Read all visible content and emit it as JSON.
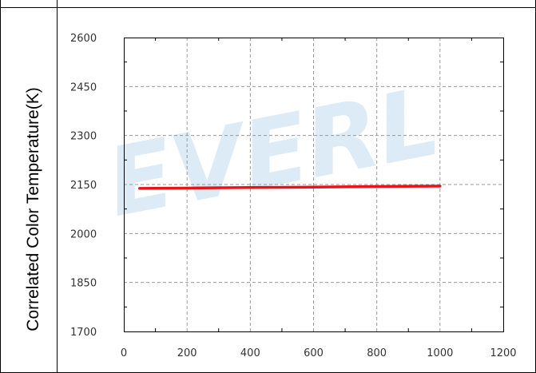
{
  "chart_data": {
    "type": "line",
    "title": "",
    "xlabel": "",
    "ylabel": "Correlated Color Temperature(K)",
    "xlim": [
      0,
      1200
    ],
    "ylim": [
      1700,
      2600
    ],
    "xticks": [
      0,
      200,
      400,
      600,
      800,
      1000,
      1200
    ],
    "yticks": [
      1700,
      1850,
      2000,
      2150,
      2300,
      2450,
      2600
    ],
    "x_tick_labels": [
      "0",
      "200",
      "400",
      "600",
      "800",
      "1000",
      "1200"
    ],
    "y_tick_labels": [
      "1700",
      "1850",
      "2000",
      "2150",
      "2300",
      "2450",
      "2600"
    ],
    "grid": true,
    "legend": "none",
    "series": [
      {
        "color": "#e8141b",
        "x": [
          50,
          200,
          400,
          600,
          800,
          1000
        ],
        "y": [
          2138,
          2139,
          2141,
          2142,
          2144,
          2145
        ]
      }
    ]
  },
  "watermark": "EVERL",
  "colors": {
    "line": "#e8141b",
    "grid": "#9a9a9a",
    "axis": "#000000",
    "watermark": "#cfe3f3"
  }
}
